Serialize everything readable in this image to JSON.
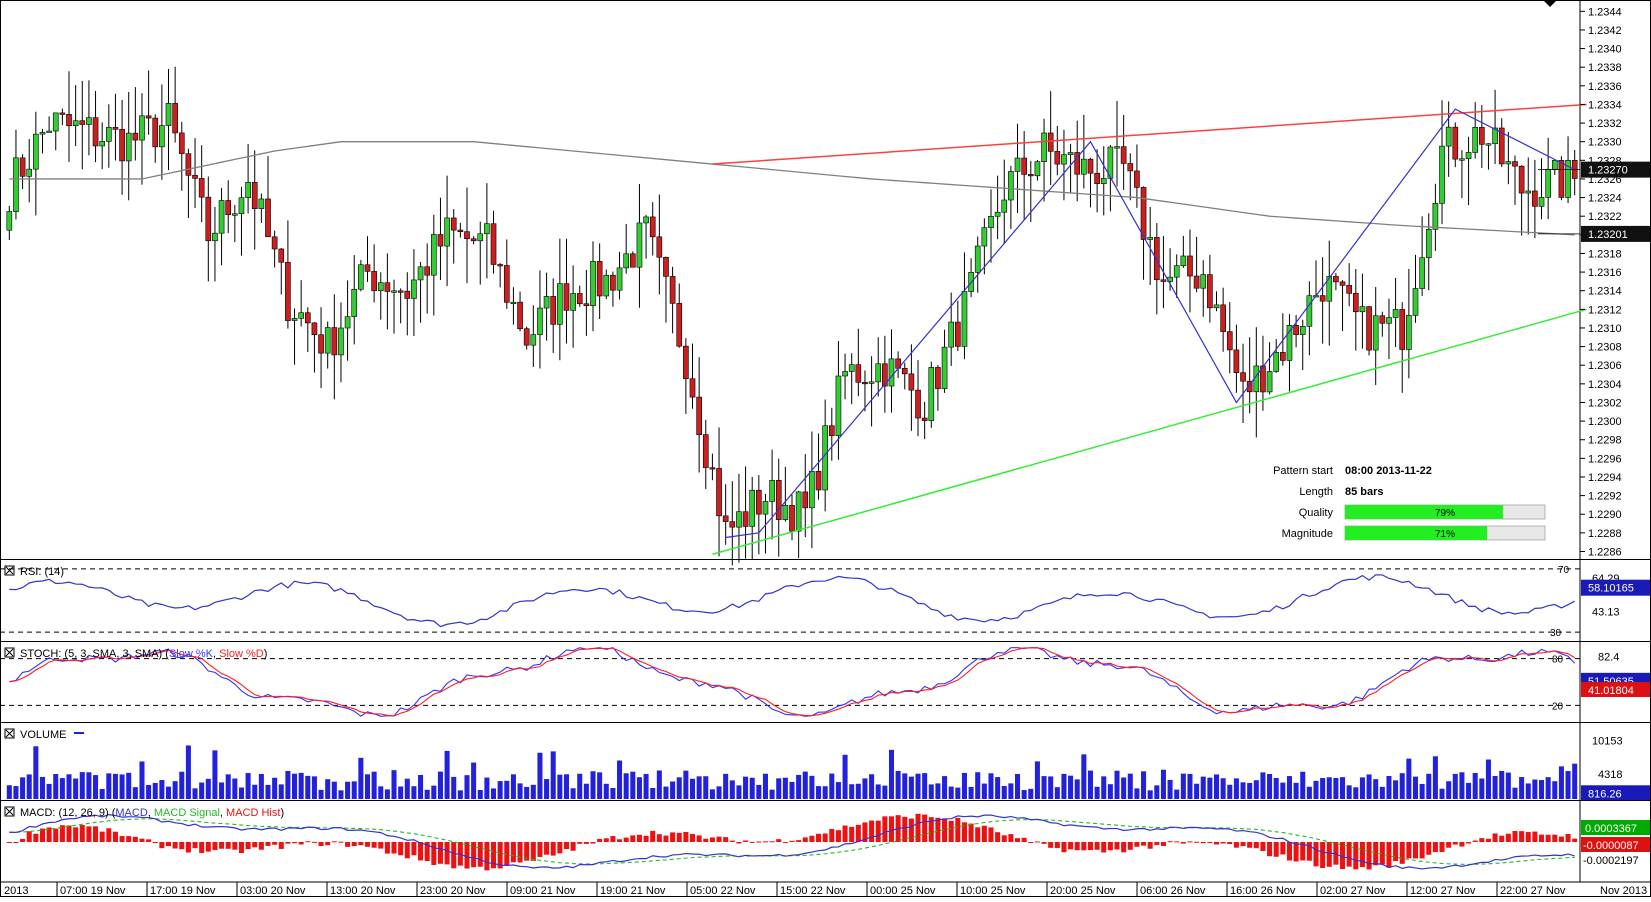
{
  "colors": {
    "bull": "#33cc33",
    "bear": "#cc1f1f",
    "wick": "#000000",
    "ma": "#808080",
    "resistance": "#ff4040",
    "support": "#33ee33",
    "pattern": "#3333cc",
    "rsi": "#3333cc",
    "stoch_k": "#3333ff",
    "stoch_d": "#ff2020",
    "volume": "#2222dd",
    "macd": "#3333cc",
    "macd_signal": "#22bb22",
    "macd_hist": "#ee1111",
    "tag_blue": "#1a1ab8",
    "tag_red": "#dd1111",
    "tag_green": "#00aa00",
    "tag_black": "#111111"
  },
  "chart_data": {
    "type": "candlestick",
    "y_ticks": [
      "1.2344",
      "1.2342",
      "1.2340",
      "1.2338",
      "1.2336",
      "1.2334",
      "1.2332",
      "1.2330",
      "1.2328",
      "1.2326",
      "1.2324",
      "1.2322",
      "1.2320",
      "1.2318",
      "1.2316",
      "1.2314",
      "1.2312",
      "1.2310",
      "1.2308",
      "1.2306",
      "1.2304",
      "1.2302",
      "1.2300",
      "1.2298",
      "1.2296",
      "1.2294",
      "1.2292",
      "1.2290",
      "1.2288",
      "1.2286"
    ],
    "y_range": [
      1.22853,
      1.2345
    ],
    "x_ticks": [
      "2013",
      "07:00 19 Nov",
      "17:00 19 Nov",
      "03:00 20 Nov",
      "13:00 20 Nov",
      "23:00 20 Nov",
      "09:00 21 Nov",
      "19:00 21 Nov",
      "05:00 22 Nov",
      "15:00 22 Nov",
      "00:00 25 Nov",
      "10:00 25 Nov",
      "20:00 25 Nov",
      "06:00 26 Nov",
      "16:00 26 Nov",
      "02:00 27 Nov",
      "12:00 27 Nov",
      "22:00 27 Nov",
      "Nov 2013"
    ],
    "price_tags": {
      "current": "1.23270",
      "ma": "1.23201"
    },
    "anchors": [
      [
        0,
        1.2325
      ],
      [
        6,
        1.2332
      ],
      [
        12,
        1.2331
      ],
      [
        18,
        1.233
      ],
      [
        24,
        1.2332
      ],
      [
        30,
        1.232
      ],
      [
        36,
        1.2326
      ],
      [
        42,
        1.2313
      ],
      [
        48,
        1.2308
      ],
      [
        54,
        1.2316
      ],
      [
        60,
        1.2314
      ],
      [
        66,
        1.232
      ],
      [
        72,
        1.2319
      ],
      [
        78,
        1.2309
      ],
      [
        84,
        1.2314
      ],
      [
        90,
        1.2315
      ],
      [
        96,
        1.232
      ],
      [
        102,
        1.2307
      ],
      [
        108,
        1.2288
      ],
      [
        114,
        1.2292
      ],
      [
        120,
        1.229
      ],
      [
        126,
        1.2305
      ],
      [
        132,
        1.2306
      ],
      [
        138,
        1.2302
      ],
      [
        144,
        1.2312
      ],
      [
        150,
        1.2325
      ],
      [
        156,
        1.2329
      ],
      [
        162,
        1.2327
      ],
      [
        168,
        1.2327
      ],
      [
        174,
        1.2315
      ],
      [
        180,
        1.2316
      ],
      [
        186,
        1.2303
      ],
      [
        192,
        1.2308
      ],
      [
        198,
        1.2315
      ],
      [
        204,
        1.231
      ],
      [
        210,
        1.231
      ],
      [
        216,
        1.2329
      ],
      [
        222,
        1.2331
      ],
      [
        228,
        1.2325
      ],
      [
        236,
        1.2326
      ]
    ],
    "ma_points": [
      [
        0,
        1.2326
      ],
      [
        20,
        1.2326
      ],
      [
        40,
        1.2329
      ],
      [
        50,
        1.233
      ],
      [
        70,
        1.233
      ],
      [
        100,
        1.2328
      ],
      [
        130,
        1.2326
      ],
      [
        150,
        1.2325
      ],
      [
        170,
        1.2324
      ],
      [
        190,
        1.2322
      ],
      [
        210,
        1.2321
      ],
      [
        236,
        1.232
      ]
    ],
    "resistance_line": [
      [
        106,
        1.23276
      ],
      [
        236,
        1.2334
      ]
    ],
    "support_line": [
      [
        106,
        1.22857
      ],
      [
        236,
        1.2312
      ]
    ],
    "pattern_points": [
      [
        108,
        1.22875
      ],
      [
        113,
        1.2288
      ],
      [
        163,
        1.233
      ],
      [
        185,
        1.2302
      ],
      [
        218,
        1.23335
      ],
      [
        236,
        1.2327
      ]
    ],
    "pattern_info": {
      "start_label": "Pattern start",
      "start_value": "08:00 2013-11-22",
      "length_label": "Length",
      "length_value": "85 bars",
      "quality_label": "Quality",
      "quality_value": "79%",
      "quality": 0.79,
      "magnitude_label": "Magnitude",
      "magnitude_value": "71%",
      "magnitude": 0.71
    }
  },
  "indicators": {
    "rsi": {
      "title": "RSI: (14)",
      "top_label": "70",
      "bottom_label": "30",
      "tick_64": "64.29",
      "tick_43": "43.13",
      "value": "58.10165",
      "upper": 70,
      "lower": 30,
      "range": [
        25,
        75
      ]
    },
    "stoch": {
      "title_prefix": "STOCH: (5, 3, SMA, 3, SMA)",
      "k_label": "Slow %K",
      "d_label": "Slow %D",
      "top_label": "80",
      "bottom_label": "20",
      "tick_82": "82.4",
      "k_value": "51.50635",
      "d_value": "41.01804",
      "upper": 80,
      "lower": 20,
      "range": [
        0,
        100
      ]
    },
    "volume": {
      "title": "VOLUME",
      "tick_high": "10153",
      "tick_mid": "4318",
      "value": "816.26",
      "max": 13000
    },
    "macd": {
      "title_prefix": "MACD: (12, 26, 9)",
      "macd_label": "MACD",
      "signal_label": "MACD Signal",
      "hist_label": "MACD Hist",
      "value1": "0.0003367",
      "value2": "-0.0000087",
      "value3": "-0.0002197"
    }
  }
}
